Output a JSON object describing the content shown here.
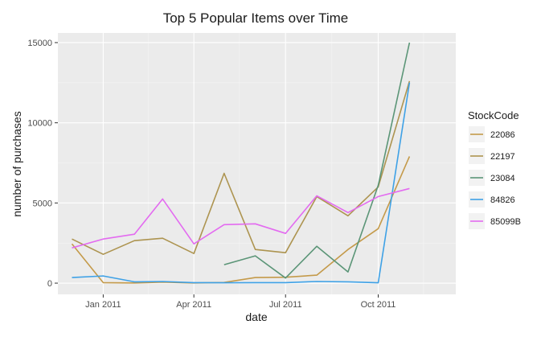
{
  "chart_data": {
    "type": "line",
    "title": "Top 5 Popular Items over Time",
    "xlabel": "date",
    "ylabel": "number of purchases",
    "x_ticks": [
      "Jan 2011",
      "Apr 2011",
      "Jul 2011",
      "Oct 2011"
    ],
    "y_ticks": [
      "0",
      "5000",
      "10000",
      "15000"
    ],
    "ylim": [
      -700,
      15600
    ],
    "xlim": [
      "2010-11-17",
      "2011-12-17"
    ],
    "grid": true,
    "legend_title": "StockCode",
    "legend_position": "right",
    "series": [
      {
        "name": "22086",
        "color": "#c49a4a",
        "points": [
          [
            "2010-12-01",
            2450
          ],
          [
            "2011-01-01",
            30
          ],
          [
            "2011-02-01",
            10
          ],
          [
            "2011-03-01",
            60
          ],
          [
            "2011-04-01",
            10
          ],
          [
            "2011-05-01",
            40
          ],
          [
            "2011-06-01",
            350
          ],
          [
            "2011-07-01",
            370
          ],
          [
            "2011-08-01",
            500
          ],
          [
            "2011-09-01",
            2100
          ],
          [
            "2011-10-01",
            3400
          ],
          [
            "2011-11-01",
            7900
          ]
        ]
      },
      {
        "name": "22197",
        "color": "#ad9450",
        "points": [
          [
            "2010-12-01",
            2750
          ],
          [
            "2011-01-01",
            1800
          ],
          [
            "2011-02-01",
            2650
          ],
          [
            "2011-03-01",
            2800
          ],
          [
            "2011-04-01",
            1850
          ],
          [
            "2011-05-01",
            6850
          ],
          [
            "2011-06-01",
            2100
          ],
          [
            "2011-07-01",
            1900
          ],
          [
            "2011-08-01",
            5400
          ],
          [
            "2011-09-01",
            4200
          ],
          [
            "2011-10-01",
            6000
          ],
          [
            "2011-11-01",
            12600
          ]
        ]
      },
      {
        "name": "23084",
        "color": "#5b9577",
        "points": [
          [
            "2011-05-01",
            1150
          ],
          [
            "2011-06-01",
            1700
          ],
          [
            "2011-07-01",
            320
          ],
          [
            "2011-08-01",
            2300
          ],
          [
            "2011-09-01",
            700
          ],
          [
            "2011-10-01",
            6100
          ],
          [
            "2011-11-01",
            15000
          ]
        ]
      },
      {
        "name": "84826",
        "color": "#3ea1e6",
        "points": [
          [
            "2010-12-01",
            350
          ],
          [
            "2011-01-01",
            450
          ],
          [
            "2011-02-01",
            80
          ],
          [
            "2011-03-01",
            100
          ],
          [
            "2011-04-01",
            30
          ],
          [
            "2011-05-01",
            20
          ],
          [
            "2011-06-01",
            30
          ],
          [
            "2011-07-01",
            30
          ],
          [
            "2011-08-01",
            100
          ],
          [
            "2011-09-01",
            80
          ],
          [
            "2011-10-01",
            20
          ],
          [
            "2011-11-01",
            12500
          ]
        ]
      },
      {
        "name": "85099B",
        "color": "#e36bf0",
        "points": [
          [
            "2010-12-01",
            2200
          ],
          [
            "2011-01-01",
            2750
          ],
          [
            "2011-02-01",
            3050
          ],
          [
            "2011-03-01",
            5250
          ],
          [
            "2011-04-01",
            2450
          ],
          [
            "2011-05-01",
            3650
          ],
          [
            "2011-06-01",
            3700
          ],
          [
            "2011-07-01",
            3100
          ],
          [
            "2011-08-01",
            5450
          ],
          [
            "2011-09-01",
            4400
          ],
          [
            "2011-10-01",
            5400
          ],
          [
            "2011-11-01",
            5900
          ]
        ]
      }
    ]
  }
}
